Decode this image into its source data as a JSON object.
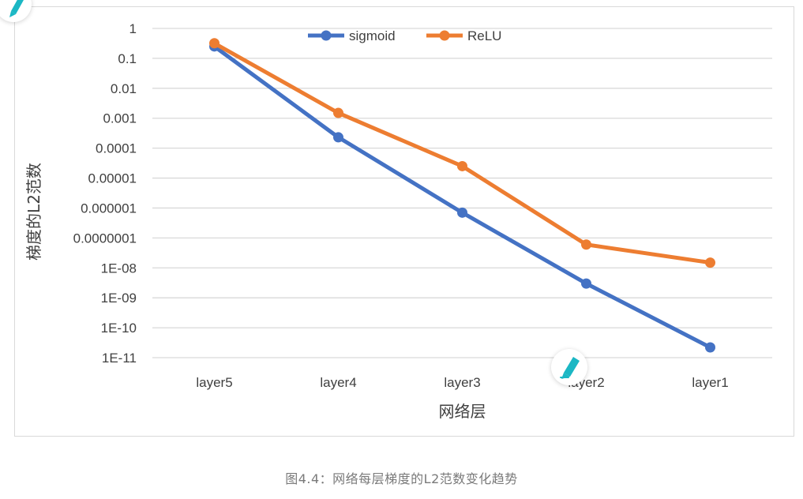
{
  "chart_data": {
    "type": "line",
    "categories": [
      "layer5",
      "layer4",
      "layer3",
      "layer2",
      "layer1"
    ],
    "series": [
      {
        "name": "sigmoid",
        "color": "#4472c4",
        "values": [
          0.25,
          0.00023,
          7e-07,
          3e-09,
          2.2e-11
        ]
      },
      {
        "name": "ReLU",
        "color": "#ed7d31",
        "values": [
          0.32,
          0.0015,
          2.5e-05,
          6e-08,
          1.5e-08
        ]
      }
    ],
    "y_scale": "log",
    "ylim": [
      1e-11,
      1
    ],
    "y_ticks": [
      {
        "value": 1,
        "label": "1"
      },
      {
        "value": 0.1,
        "label": "0.1"
      },
      {
        "value": 0.01,
        "label": "0.01"
      },
      {
        "value": 0.001,
        "label": "0.001"
      },
      {
        "value": 0.0001,
        "label": "0.0001"
      },
      {
        "value": 1e-05,
        "label": "0.00001"
      },
      {
        "value": 1e-06,
        "label": "0.000001"
      },
      {
        "value": 1e-07,
        "label": "0.0000001"
      },
      {
        "value": 1e-08,
        "label": "1E-08"
      },
      {
        "value": 1e-09,
        "label": "1E-09"
      },
      {
        "value": 1e-10,
        "label": "1E-10"
      },
      {
        "value": 1e-11,
        "label": "1E-11"
      }
    ],
    "xlabel": "网络层",
    "ylabel": "梯度的L2范数",
    "grid": true,
    "legend_position": "top-center"
  },
  "caption": "图4.4：网络每层梯度的L2范数变化趋势",
  "icons": {
    "pen_top_left": "pen-icon",
    "pen_overlay": "pen-icon"
  },
  "colors": {
    "pen_teal": "#1bb7c4",
    "gridline": "#d9d9d9"
  }
}
